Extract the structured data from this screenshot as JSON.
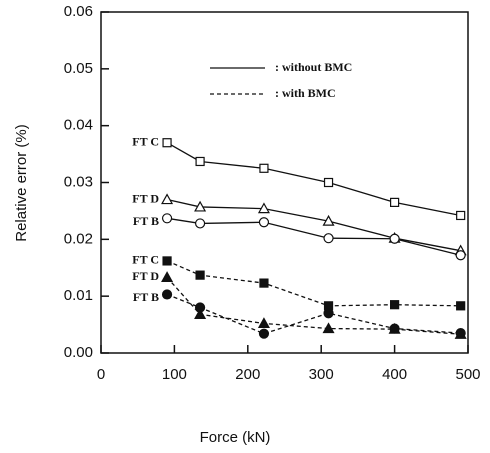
{
  "chart_data": {
    "type": "line",
    "xlabel": "Force (kN)",
    "ylabel": "Relative error (%)",
    "xlim": [
      0,
      500
    ],
    "xticks": [
      0,
      100,
      200,
      300,
      400,
      500
    ],
    "ylim": [
      0,
      0.06
    ],
    "yticks": [
      {
        "value": 0,
        "label": "0.00"
      },
      {
        "value": 0.01,
        "label": "0.01"
      },
      {
        "value": 0.02,
        "label": "0.02"
      },
      {
        "value": 0.03,
        "label": "0.03"
      },
      {
        "value": 0.04,
        "label": "0.04"
      },
      {
        "value": 0.05,
        "label": "0.05"
      },
      {
        "value": 0.06,
        "label": "0.06"
      }
    ],
    "legend": [
      {
        "label": ": without BMC",
        "dash": false
      },
      {
        "label": ": with BMC",
        "dash": true
      }
    ],
    "x": [
      90,
      135,
      222,
      310,
      400,
      490
    ],
    "series": [
      {
        "name": "FT C",
        "color": "#111",
        "marker": "square",
        "filled": false,
        "dash": false,
        "values": [
          0.037,
          0.0337,
          0.0325,
          0.03,
          0.0265,
          0.0242
        ]
      },
      {
        "name": "FT D",
        "color": "#111",
        "marker": "triangle",
        "filled": false,
        "dash": false,
        "values": [
          0.027,
          0.0257,
          0.0254,
          0.0232,
          0.0202,
          0.018
        ]
      },
      {
        "name": "FT B",
        "color": "#111",
        "marker": "circle",
        "filled": false,
        "dash": false,
        "values": [
          0.0237,
          0.0228,
          0.023,
          0.0202,
          0.0201,
          0.0172
        ]
      },
      {
        "name": "FT C",
        "color": "#111",
        "marker": "square",
        "filled": true,
        "dash": true,
        "values": [
          0.0162,
          0.0137,
          0.0123,
          0.0083,
          0.0085,
          0.0083
        ]
      },
      {
        "name": "FT D",
        "color": "#111",
        "marker": "triangle",
        "filled": true,
        "dash": true,
        "values": [
          0.0133,
          0.0068,
          0.0052,
          0.0043,
          0.0042,
          0.0033
        ]
      },
      {
        "name": "FT B",
        "color": "#111",
        "marker": "circle",
        "filled": true,
        "dash": true,
        "values": [
          0.0103,
          0.008,
          0.0034,
          0.007,
          0.0043,
          0.0035
        ]
      }
    ]
  }
}
